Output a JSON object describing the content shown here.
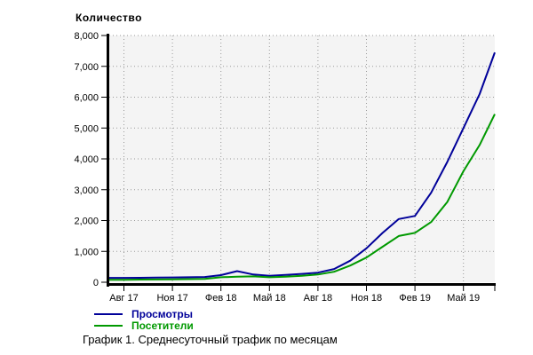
{
  "chart_data": {
    "type": "line",
    "title": "Количество",
    "caption": "График 1. Среднесуточный трафик по месяцам",
    "categories": [
      "Авг 17",
      "Сен 17",
      "Окт 17",
      "Ноя 17",
      "Дек 17",
      "Янв 18",
      "Фев 18",
      "Мар 18",
      "Апр 18",
      "Май 18",
      "Июн 18",
      "Июл 18",
      "Авг 18",
      "Сен 18",
      "Окт 18",
      "Ноя 18",
      "Дек 18",
      "Янв 19",
      "Фев 19",
      "Мар 19",
      "Апр 19",
      "Май 19",
      "Июн 19",
      "Июл 19"
    ],
    "x_tick_labels": [
      "Авг 17",
      "Ноя 17",
      "Фев 18",
      "Май 18",
      "Авг 18",
      "Ноя 18",
      "Фев 19",
      "Май 19"
    ],
    "x_ticks_every_n_months": 3,
    "series": [
      {
        "name": "Просмотры",
        "color": "#000099",
        "values": [
          140,
          145,
          150,
          155,
          160,
          170,
          230,
          360,
          250,
          210,
          240,
          270,
          310,
          430,
          700,
          1100,
          1600,
          2050,
          2150,
          2900,
          3900,
          5000,
          6100,
          7450
        ]
      },
      {
        "name": "Посетители",
        "color": "#009900",
        "values": [
          80,
          85,
          90,
          95,
          100,
          110,
          160,
          180,
          190,
          160,
          180,
          210,
          250,
          340,
          540,
          800,
          1150,
          1500,
          1600,
          1950,
          2600,
          3600,
          4450,
          5450
        ]
      }
    ],
    "ylim": [
      0,
      8000
    ],
    "y_tick_step": 1000,
    "grid": true,
    "legend_position": "bottom-left",
    "plot_background": "#f4f4f4",
    "axis_color": "#000000",
    "gridline_color": "#999999"
  }
}
